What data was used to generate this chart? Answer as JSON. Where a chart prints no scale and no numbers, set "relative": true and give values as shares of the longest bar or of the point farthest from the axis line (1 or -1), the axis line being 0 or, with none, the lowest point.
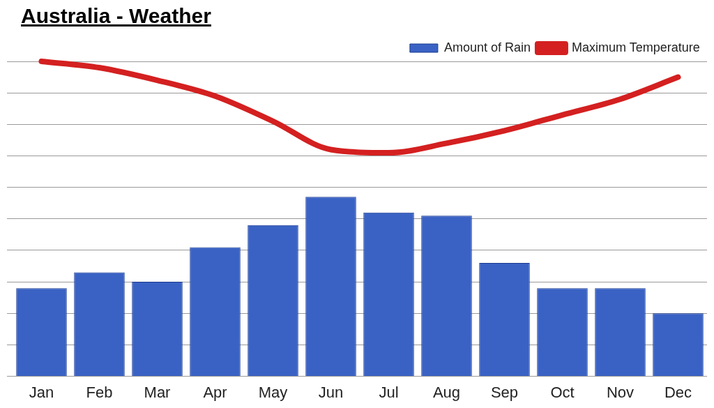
{
  "chart_data": {
    "type": "bar",
    "title": "Australia - Weather",
    "relative": true,
    "grid": "y",
    "legend": "top right",
    "marker": "none",
    "categories": [
      "Jan",
      "Feb",
      "Mar",
      "Apr",
      "May",
      "Jun",
      "Jul",
      "Aug",
      "Sep",
      "Oct",
      "Nov",
      "Dec"
    ],
    "series": [
      {
        "name": "Amount of Rain",
        "color": "#3a62c4",
        "values": [
          0.28,
          0.33,
          0.3,
          0.41,
          0.48,
          0.57,
          0.52,
          0.51,
          0.36,
          0.28,
          0.28,
          0.2
        ]
      },
      {
        "name": "Maximum Temperature",
        "type": "line",
        "color": "#d42020",
        "values": [
          1,
          0.98,
          0.94,
          0.89,
          0.81,
          0.72,
          0.71,
          0.74,
          0.78,
          0.83,
          0.88,
          0.95
        ]
      }
    ]
  }
}
